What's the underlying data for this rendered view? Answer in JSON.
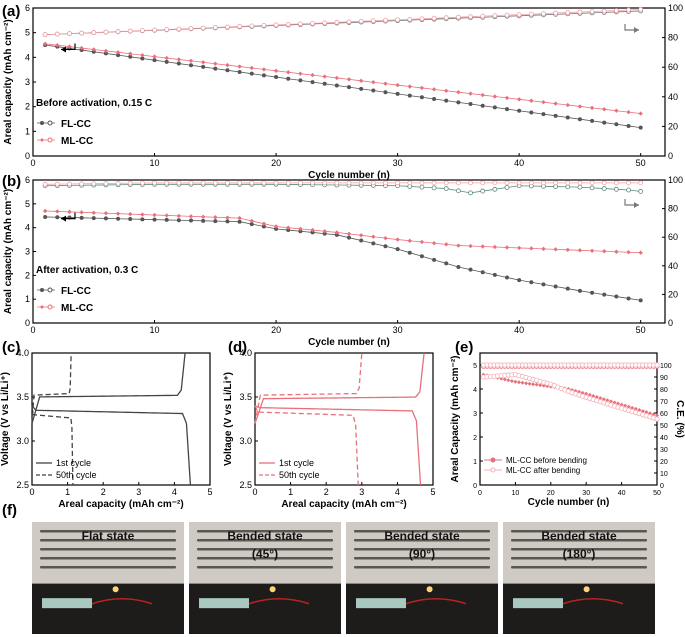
{
  "chart_data": [
    {
      "type": "scatter",
      "panel": "(a)",
      "title": "Before activation, 0.15 C",
      "xlabel": "Cycle number (n)",
      "ylabel": "Areal capacity (mAh cm⁻²)",
      "y2label": "C.E. (%)",
      "xlim": [
        0,
        52
      ],
      "ylim": [
        0,
        6
      ],
      "y2lim": [
        0,
        100
      ],
      "xticks": [
        0,
        10,
        20,
        30,
        40,
        50
      ],
      "yticks": [
        0,
        1,
        2,
        3,
        4,
        5,
        6
      ],
      "y2ticks": [
        0,
        20,
        40,
        60,
        80,
        100
      ],
      "legend": [
        "FL-CC",
        "ML-CC"
      ],
      "x": [
        1,
        50
      ],
      "series": [
        {
          "name": "FL-CC capacity",
          "axis": "left",
          "color": "#555555",
          "values": [
            4.5,
            1.15
          ]
        },
        {
          "name": "ML-CC capacity",
          "axis": "left",
          "color": "#e8707a",
          "values": [
            4.55,
            1.72
          ]
        },
        {
          "name": "FL-CC CE",
          "axis": "right",
          "color": "#777777",
          "values": [
            82,
            98
          ]
        },
        {
          "name": "ML-CC CE",
          "axis": "right",
          "color": "#f0a0a8",
          "values": [
            82,
            99
          ]
        }
      ]
    },
    {
      "type": "scatter",
      "panel": "(b)",
      "title": "After activation, 0.3 C",
      "xlabel": "Cycle number (n)",
      "ylabel": "Areal capacity (mAh cm⁻²)",
      "y2label": "C.E. (%)",
      "xlim": [
        0,
        52
      ],
      "ylim": [
        0,
        6
      ],
      "y2lim": [
        0,
        100
      ],
      "xticks": [
        0,
        10,
        20,
        30,
        40,
        50
      ],
      "yticks": [
        0,
        1,
        2,
        3,
        4,
        5,
        6
      ],
      "y2ticks": [
        0,
        20,
        40,
        60,
        80,
        100
      ],
      "legend": [
        "FL-CC",
        "ML-CC"
      ],
      "series": [
        {
          "name": "FL-CC capacity",
          "axis": "left",
          "color": "#555555",
          "x": [
            1,
            17,
            20,
            25,
            30,
            35,
            40,
            45,
            50
          ],
          "values": [
            4.45,
            4.25,
            3.95,
            3.7,
            3.1,
            2.35,
            1.8,
            1.35,
            0.95
          ]
        },
        {
          "name": "ML-CC capacity",
          "axis": "left",
          "color": "#e8707a",
          "x": [
            1,
            17,
            20,
            25,
            30,
            35,
            40,
            45,
            50
          ],
          "values": [
            4.7,
            4.4,
            4.05,
            3.8,
            3.5,
            3.25,
            3.15,
            3.05,
            2.95
          ]
        },
        {
          "name": "FL-CC CE",
          "axis": "right",
          "color": "#5a8a7a",
          "x": [
            1,
            10,
            20,
            30,
            34,
            36,
            40,
            45,
            49,
            50
          ],
          "values": [
            96,
            97,
            97,
            96,
            94,
            91,
            96,
            95,
            93,
            92
          ]
        },
        {
          "name": "ML-CC CE",
          "axis": "right",
          "color": "#f0a0a8",
          "x": [
            1,
            10,
            20,
            30,
            40,
            50
          ],
          "values": [
            97,
            98,
            98,
            98,
            98,
            98
          ]
        }
      ]
    },
    {
      "type": "line",
      "panel": "(c)",
      "xlabel": "Areal capacity (mAh cm⁻²)",
      "ylabel": "Voltage (V vs Li/Li⁺)",
      "xlim": [
        0,
        5
      ],
      "ylim": [
        2.5,
        4.0
      ],
      "xticks": [
        0,
        1,
        2,
        3,
        4,
        5
      ],
      "yticks": [
        2.5,
        3.0,
        3.5,
        4.0
      ],
      "legend": [
        "1st cycle",
        "50th cycle"
      ],
      "series": [
        {
          "name": "1st cycle",
          "color": "#444444",
          "dash": false,
          "charge_end": 4.3,
          "discharge_end": 4.45,
          "charge_plateau": 3.5,
          "discharge_plateau": 3.35
        },
        {
          "name": "50th cycle",
          "color": "#444444",
          "dash": true,
          "charge_end": 1.1,
          "discharge_end": 1.15,
          "charge_plateau": 3.52,
          "discharge_plateau": 3.3
        }
      ]
    },
    {
      "type": "line",
      "panel": "(d)",
      "xlabel": "Areal capacity (mAh cm⁻²)",
      "ylabel": "Voltage (V vs Li/Li⁺)",
      "xlim": [
        0,
        5
      ],
      "ylim": [
        2.5,
        4.0
      ],
      "xticks": [
        0,
        1,
        2,
        3,
        4,
        5
      ],
      "yticks": [
        2.5,
        3.0,
        3.5,
        4.0
      ],
      "legend": [
        "1st cycle",
        "50th cycle"
      ],
      "series": [
        {
          "name": "1st cycle",
          "color": "#e8707a",
          "dash": false,
          "charge_end": 4.75,
          "discharge_end": 4.65,
          "charge_plateau": 3.48,
          "discharge_plateau": 3.38
        },
        {
          "name": "50th cycle",
          "color": "#e8707a",
          "dash": true,
          "charge_end": 3.0,
          "discharge_end": 2.9,
          "charge_plateau": 3.52,
          "discharge_plateau": 3.33
        }
      ]
    },
    {
      "type": "scatter",
      "panel": "(e)",
      "xlabel": "Cycle number (n)",
      "ylabel": "Areal Capacity (mAh cm⁻²)",
      "y2label": "C.E. (%)",
      "xlim": [
        0,
        50
      ],
      "ylim": [
        0,
        5.5
      ],
      "y2lim": [
        0,
        110
      ],
      "xticks": [
        0,
        10,
        20,
        30,
        40,
        50
      ],
      "yticks": [
        0,
        1,
        2,
        3,
        4,
        5
      ],
      "y2ticks": [
        0,
        10,
        20,
        30,
        40,
        50,
        60,
        70,
        80,
        90,
        100
      ],
      "legend": [
        "ML-CC before bending",
        "ML-CC after bending"
      ],
      "series": [
        {
          "name": "ML-CC before bending",
          "color": "#e8707a",
          "x": [
            1,
            10,
            20,
            25,
            30,
            40,
            50
          ],
          "values": [
            4.6,
            4.3,
            4.1,
            4.0,
            3.8,
            3.35,
            2.9
          ]
        },
        {
          "name": "ML-CC after bending",
          "color": "#f4b0b8",
          "x": [
            1,
            10,
            20,
            25,
            30,
            40,
            50
          ],
          "values": [
            4.5,
            4.6,
            4.2,
            3.9,
            3.65,
            3.2,
            2.75
          ]
        },
        {
          "name": "CE before",
          "axis": "right",
          "color": "#e8707a",
          "x": [
            1,
            50
          ],
          "values": [
            99,
            99
          ]
        },
        {
          "name": "CE after",
          "axis": "right",
          "color": "#f4b0b8",
          "x": [
            1,
            50
          ],
          "values": [
            100,
            100
          ]
        }
      ]
    }
  ],
  "panels": {
    "a": "(a)",
    "b": "(b)",
    "c": "(c)",
    "d": "(d)",
    "e": "(e)",
    "f": "(f)"
  },
  "photos": [
    {
      "label": "Flat state"
    },
    {
      "label": "Bended state",
      "angle": "(45°)"
    },
    {
      "label": "Bended state",
      "angle": "(90°)"
    },
    {
      "label": "Bended state",
      "angle": "(180°)"
    }
  ],
  "colors": {
    "gray": "#555555",
    "pink": "#e8707a",
    "lightpink": "#f4b0b8",
    "teal": "#5a8a7a"
  }
}
